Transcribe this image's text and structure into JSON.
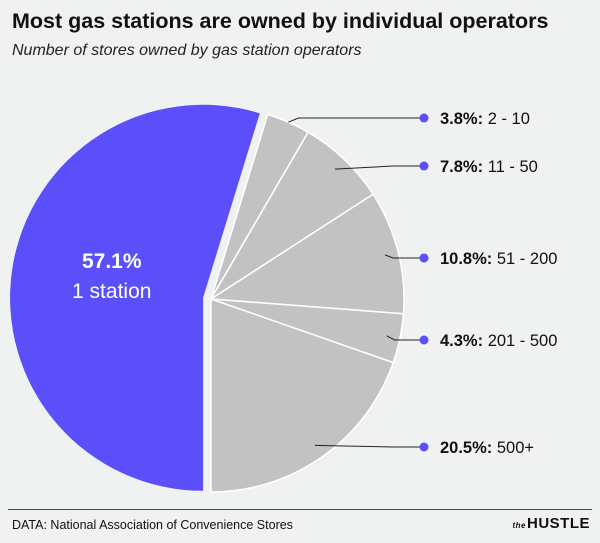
{
  "title": "Most gas stations are owned by individual operators",
  "subtitle": "Number of stores owned by gas station operators",
  "source": "DATA: National Association of Convenience Stores",
  "logo": {
    "prefix": "the",
    "name": "HUSTLE"
  },
  "colors": {
    "highlight": "#5b4ff9",
    "other": "#c2c2c2",
    "dot": "#5b4ff9",
    "background": "#f0f1f1"
  },
  "chart_data": {
    "type": "pie",
    "slices": [
      {
        "label": "1 station",
        "value": 57.1,
        "pct_label": "57.1%"
      },
      {
        "label": "2 - 10",
        "value": 3.8,
        "pct_label": "3.8%:"
      },
      {
        "label": "11 - 50",
        "value": 7.8,
        "pct_label": "7.8%:"
      },
      {
        "label": "51 - 200",
        "value": 10.8,
        "pct_label": "10.8%:"
      },
      {
        "label": "201 - 500",
        "value": 4.3,
        "pct_label": "4.3%:"
      },
      {
        "label": "500+",
        "value": 20.5,
        "pct_label": "20.5%:"
      }
    ]
  }
}
